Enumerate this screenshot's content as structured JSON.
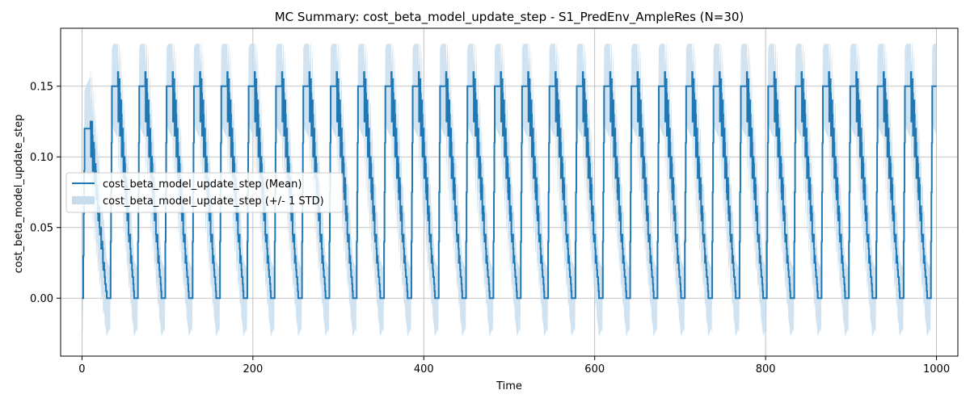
{
  "chart_data": {
    "type": "line",
    "title": "MC Summary: cost_beta_model_update_step - S1_PredEnv_AmpleRes (N=30)",
    "xlabel": "Time",
    "ylabel": "cost_beta_model_update_step",
    "xlim": [
      -25,
      1025
    ],
    "ylim": [
      -0.041,
      0.191
    ],
    "xticks": [
      0,
      200,
      400,
      600,
      800,
      1000
    ],
    "xtick_labels": [
      "0",
      "200",
      "400",
      "600",
      "800",
      "1000"
    ],
    "yticks": [
      0.0,
      0.05,
      0.1,
      0.15
    ],
    "ytick_labels": [
      "0.00",
      "0.05",
      "0.10",
      "0.15"
    ],
    "grid": true,
    "legend_position": "center-left",
    "colors": {
      "mean": "#1f77b4",
      "band": "#c6dcec"
    },
    "series": [
      {
        "name": "cost_beta_model_update_step (Mean)",
        "kind": "mean",
        "pattern": {
          "period": 32,
          "cycles": 31,
          "peak": 0.15,
          "rise_start": 1,
          "rise_time": 2,
          "plateau_length": 7,
          "decay_time": 19,
          "floor": 0.0,
          "x_start": 0,
          "x_end": 1000,
          "first_peak": 0.12
        }
      },
      {
        "name": "cost_beta_model_update_step (+/- 1 STD)",
        "kind": "std_band",
        "pattern": {
          "max_upper": 0.18,
          "min_lower": -0.03
        }
      }
    ]
  }
}
